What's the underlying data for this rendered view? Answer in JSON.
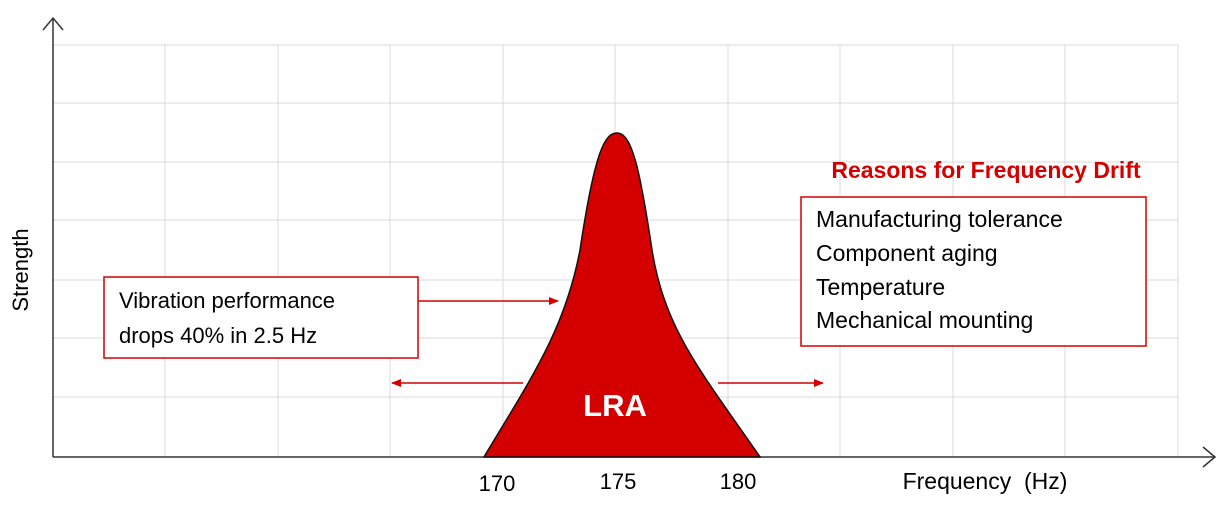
{
  "axes": {
    "y_label": "Strength",
    "x_label": "Frequency  (Hz)",
    "x_ticks": [
      170,
      175,
      180
    ]
  },
  "peak": {
    "label": "LRA"
  },
  "callout": {
    "lines": [
      "Vibration performance",
      "drops 40% in 2.5 Hz"
    ]
  },
  "reasons": {
    "title": "Reasons for Frequency Drift",
    "items": [
      "Manufacturing tolerance",
      "Component aging",
      "Temperature",
      "Mechanical mounting"
    ]
  }
}
